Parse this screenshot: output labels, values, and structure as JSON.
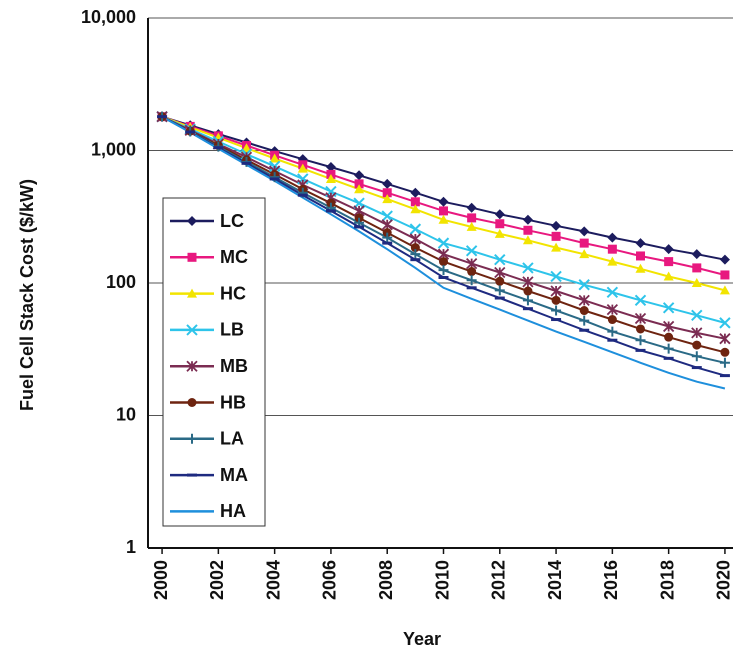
{
  "chart_data": {
    "type": "line",
    "y_label": "Fuel Cell Stack Cost ($/kW)",
    "x_label": "Year",
    "log_scale": true,
    "grid": true,
    "legend": "left",
    "x": [
      2000,
      2001,
      2002,
      2003,
      2004,
      2005,
      2006,
      2007,
      2008,
      2009,
      2010,
      2011,
      2012,
      2013,
      2014,
      2015,
      2016,
      2017,
      2018,
      2019,
      2020
    ],
    "xlim": [
      1999.5,
      2020.5
    ],
    "xticks": [
      2000,
      2002,
      2004,
      2006,
      2008,
      2010,
      2012,
      2014,
      2016,
      2018,
      2020
    ],
    "ylim": [
      1,
      10000
    ],
    "yticks": [
      1,
      10,
      100,
      {
        "value": 1000,
        "label": "1,000"
      },
      {
        "value": 10000,
        "label": "10,000"
      }
    ],
    "series": [
      {
        "name": "LC",
        "color": "#1c1c5e",
        "marker": "diamond",
        "values": [
          1800,
          1550,
          1330,
          1150,
          990,
          860,
          750,
          650,
          560,
          480,
          410,
          370,
          330,
          300,
          270,
          245,
          220,
          200,
          180,
          165,
          150
        ]
      },
      {
        "name": "MC",
        "color": "#e8187f",
        "marker": "square",
        "values": [
          1800,
          1520,
          1290,
          1090,
          920,
          780,
          660,
          560,
          480,
          410,
          350,
          310,
          280,
          250,
          225,
          200,
          180,
          160,
          145,
          130,
          115
        ]
      },
      {
        "name": "HC",
        "color": "#f2e400",
        "marker": "triangle",
        "values": [
          1800,
          1500,
          1250,
          1040,
          870,
          730,
          610,
          510,
          430,
          360,
          300,
          265,
          235,
          210,
          185,
          165,
          145,
          128,
          112,
          100,
          88
        ]
      },
      {
        "name": "LB",
        "color": "#2ec4ea",
        "marker": "x",
        "values": [
          1800,
          1450,
          1170,
          940,
          760,
          610,
          490,
          400,
          320,
          255,
          200,
          175,
          150,
          130,
          112,
          97,
          85,
          74,
          65,
          57,
          50
        ]
      },
      {
        "name": "MB",
        "color": "#7b2c52",
        "marker": "star",
        "values": [
          1800,
          1420,
          1120,
          890,
          700,
          550,
          440,
          350,
          275,
          215,
          165,
          140,
          120,
          102,
          87,
          74,
          63,
          54,
          47,
          42,
          38
        ]
      },
      {
        "name": "HB",
        "color": "#6e2410",
        "marker": "circle",
        "values": [
          1800,
          1400,
          1090,
          850,
          660,
          510,
          400,
          310,
          240,
          185,
          145,
          122,
          103,
          87,
          74,
          62,
          53,
          45,
          39,
          34,
          30
        ]
      },
      {
        "name": "LA",
        "color": "#2a6a86",
        "marker": "plus",
        "values": [
          1800,
          1390,
          1070,
          820,
          630,
          480,
          370,
          285,
          220,
          165,
          125,
          105,
          88,
          74,
          62,
          52,
          43,
          37,
          32,
          28,
          25
        ]
      },
      {
        "name": "MA",
        "color": "#1e2a80",
        "marker": "dash",
        "values": [
          1800,
          1380,
          1050,
          800,
          610,
          460,
          350,
          265,
          200,
          150,
          110,
          92,
          77,
          64,
          53,
          44,
          37,
          31,
          27,
          23,
          20
        ]
      },
      {
        "name": "HA",
        "color": "#1e8fdc",
        "marker": "none",
        "values": [
          1800,
          1370,
          1030,
          780,
          590,
          440,
          330,
          245,
          180,
          130,
          92,
          76,
          63,
          52,
          43,
          36,
          30,
          25,
          21,
          18,
          16
        ]
      }
    ]
  }
}
